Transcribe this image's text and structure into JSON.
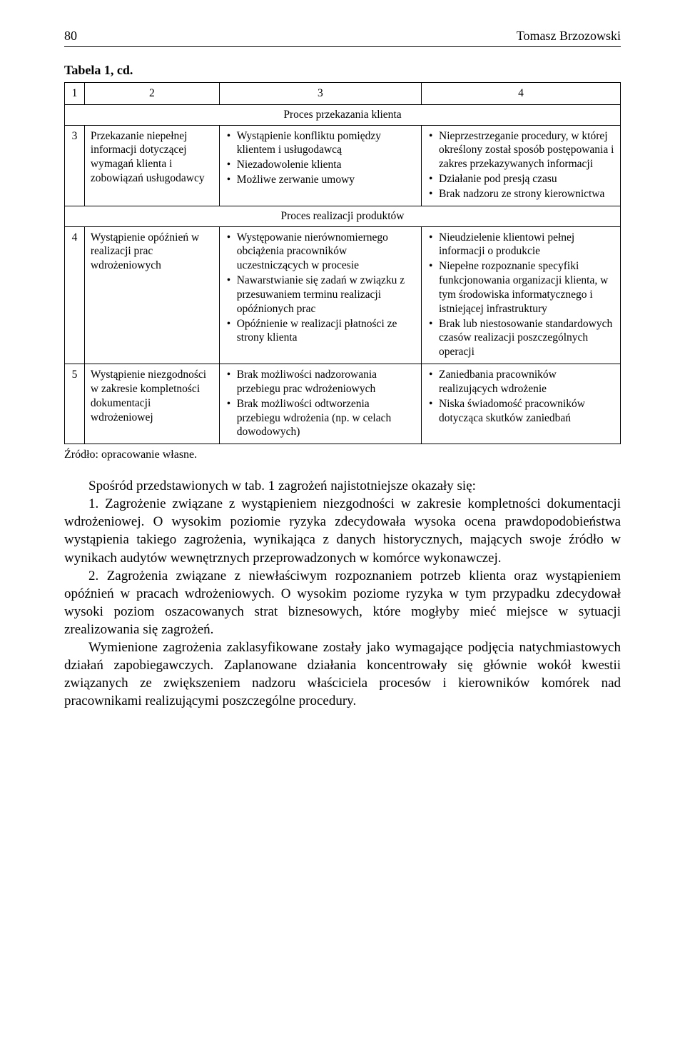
{
  "page_number": "80",
  "author": "Tomasz Brzozowski",
  "table_caption": "Tabela 1, cd.",
  "header_cols": [
    "1",
    "2",
    "3",
    "4"
  ],
  "section1": "Proces przekazania klienta",
  "row3": {
    "num": "3",
    "col2": "Przekazanie niepełnej informacji dotyczącej wymagań klienta i zobowiązań usługodawcy",
    "col3": [
      "Wystąpienie konfliktu pomiędzy klientem i usługodawcą",
      "Niezadowolenie klienta",
      "Możliwe zerwanie umowy"
    ],
    "col4": [
      "Nieprzestrzeganie procedury, w której określony został sposób postępowania i zakres przekazywanych informacji",
      "Działanie pod presją czasu",
      "Brak nadzoru ze strony kierownictwa"
    ]
  },
  "section2": "Proces realizacji produktów",
  "row4": {
    "num": "4",
    "col2": "Wystąpienie opóźnień w realizacji prac wdrożeniowych",
    "col3": [
      "Występowanie nierównomiernego obciążenia pracowników uczestniczących w procesie",
      "Nawarstwianie się zadań w związku z przesuwaniem terminu realizacji opóźnionych prac",
      "Opóźnienie w realizacji płatności ze strony klienta"
    ],
    "col4": [
      "Nieudzielenie klientowi pełnej informacji o produkcie",
      "Niepełne rozpoznanie specyfiki funkcjonowania organizacji klienta, w tym środowiska informatycznego i istniejącej infrastruktury",
      "Brak lub niestosowanie standardowych czasów realizacji poszczególnych operacji"
    ]
  },
  "row5": {
    "num": "5",
    "col2": "Wystąpienie niezgodności w zakresie kompletności dokumentacji wdrożeniowej",
    "col3": [
      "Brak możliwości nadzorowania przebiegu prac wdrożeniowych",
      "Brak możliwości odtworzenia przebiegu wdrożenia (np. w celach dowodowych)"
    ],
    "col4": [
      "Zaniedbania pracowników realizujących wdrożenie",
      "Niska świadomość pracowników dotycząca skutków zaniedbań"
    ]
  },
  "source": "Źródło: opracowanie własne.",
  "paragraphs": [
    "Spośród przedstawionych w tab. 1 zagrożeń najistotniejsze okazały się:",
    "1. Zagrożenie związane z wystąpieniem niezgodności w zakresie kompletności dokumentacji wdrożeniowej. O wysokim poziomie ryzyka zdecydowała wysoka ocena prawdopodobieństwa wystąpienia takiego zagrożenia, wynikająca z danych historycznych, mających swoje źródło w wynikach audytów wewnętrznych przeprowadzonych w komórce wykonawczej.",
    "2. Zagrożenia związane z niewłaściwym rozpoznaniem potrzeb klienta oraz wystąpieniem opóźnień w pracach wdrożeniowych. O wysokim poziome ryzyka w tym przypadku zdecydował wysoki poziom oszacowanych strat biznesowych, które mogłyby mieć miejsce w sytuacji zrealizowania się zagrożeń.",
    "Wymienione zagrożenia zaklasyfikowane zostały jako wymagające podjęcia natychmiastowych działań zapobiegawczych. Zaplanowane działania koncentrowały się głównie wokół kwestii związanych ze zwiększeniem nadzoru właściciela procesów i kierowników komórek nad pracownikami realizującymi poszczególne procedury."
  ]
}
